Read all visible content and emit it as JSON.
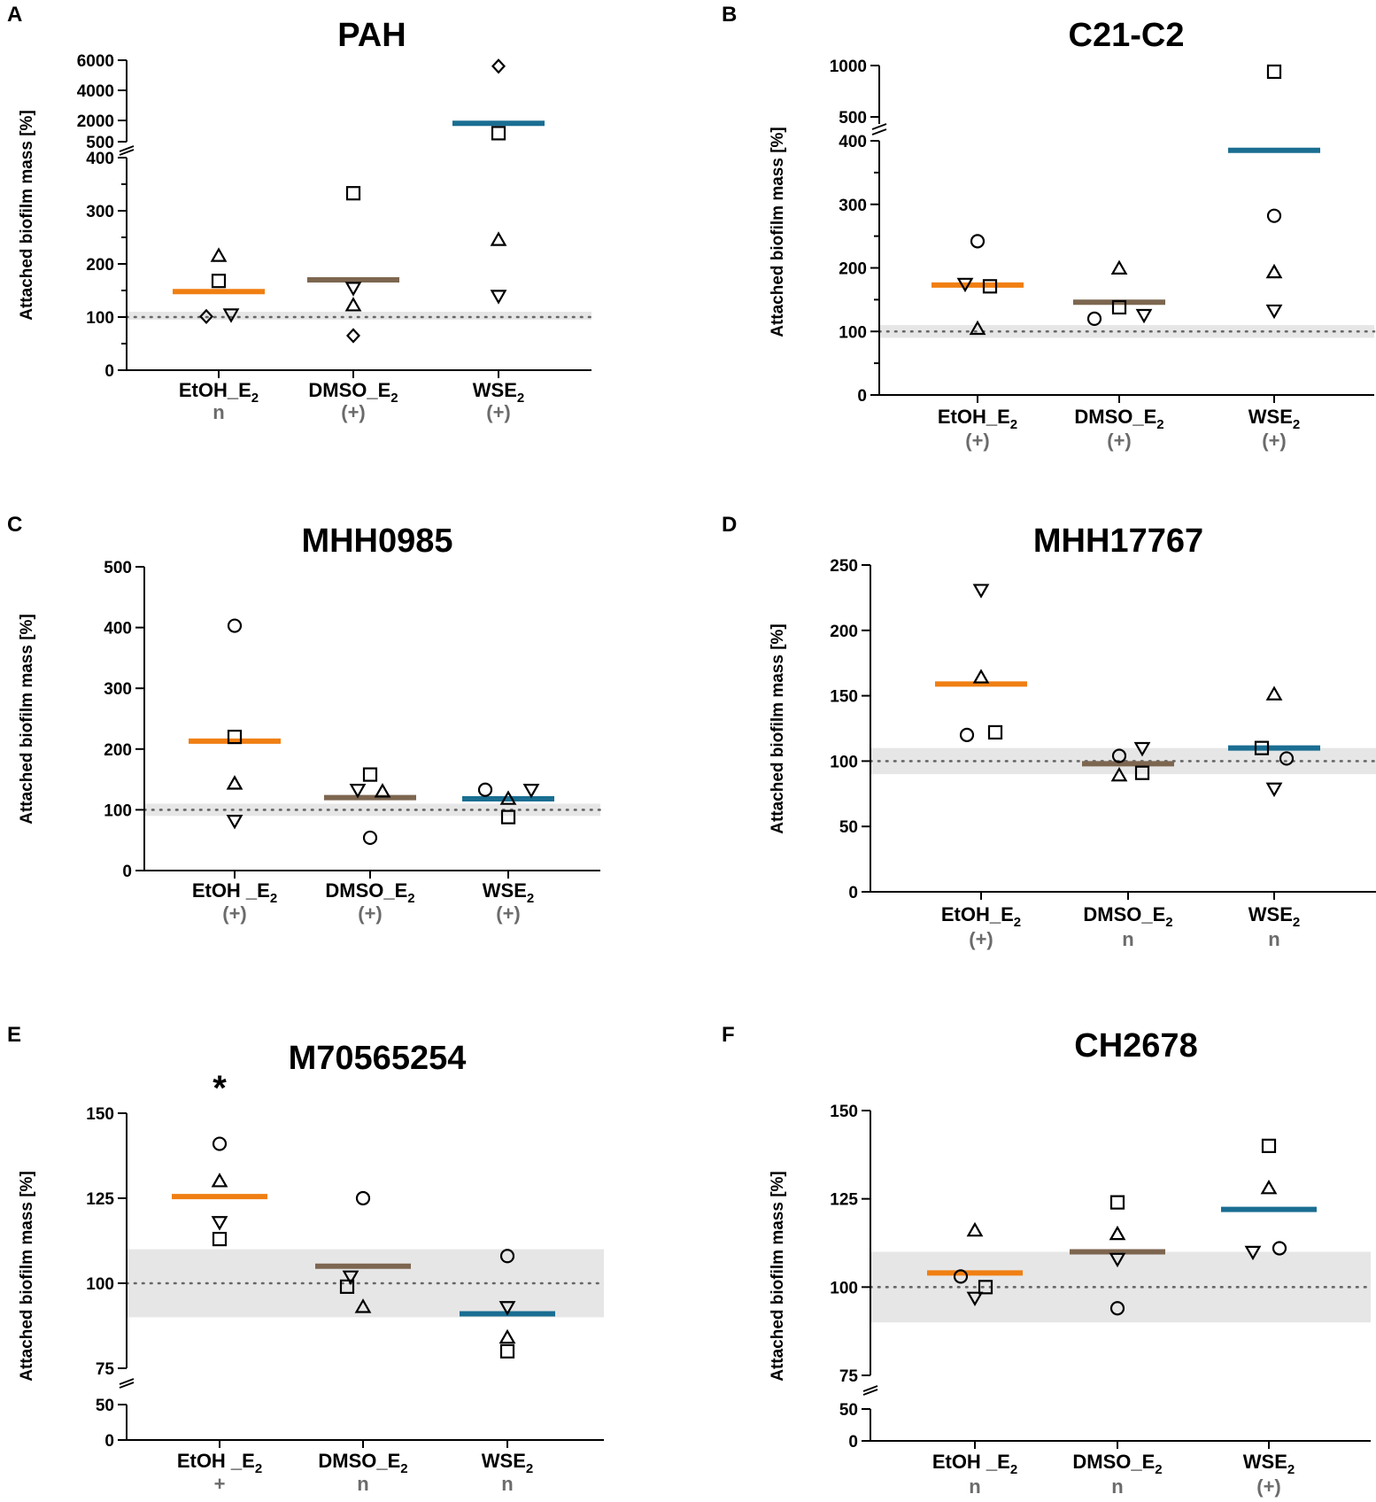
{
  "figure": {
    "colors": {
      "EtOH_E2": "#f07f12",
      "DMSO_E2": "#7d6650",
      "WSE2": "#1a6e92",
      "band": "#e6e6e6",
      "dotted": "#666666",
      "sig_text": "#6b6b6b"
    },
    "marker_legend": [
      "circle",
      "square",
      "triangle-up",
      "triangle-down",
      "diamond"
    ]
  },
  "chart_data": [
    {
      "type": "scatter",
      "panel": "A",
      "title": "PAH",
      "ylabel": "Attached biofilm mass [%]",
      "categories": [
        "EtOH_E2",
        "DMSO_E2",
        "WSE2"
      ],
      "category_labels": [
        {
          "main": "EtOH_E",
          "sub": "2",
          "sig": "n",
          "sig_color": "gray"
        },
        {
          "main": "DMSO_E",
          "sub": "2",
          "sig": "(+)",
          "sig_color": "gray"
        },
        {
          "main": "WSE",
          "sub": "2",
          "sig": "(+)",
          "sig_color": "gray"
        }
      ],
      "y_axis": {
        "lower": {
          "range": [
            0,
            400
          ],
          "ticks": [
            0,
            100,
            200,
            300,
            400
          ],
          "minor_ticks": [
            50,
            150,
            250,
            350
          ]
        },
        "upper": {
          "range": [
            500,
            6000
          ],
          "ticks": [
            500,
            2000,
            4000,
            6000
          ]
        }
      },
      "reference_line": 100,
      "band": [
        95,
        110
      ],
      "significance": "",
      "means": [
        148,
        170,
        1800
      ],
      "series": [
        {
          "category": "EtOH_E2",
          "points": [
            {
              "marker": "triangle-up",
              "value": 215
            },
            {
              "marker": "square",
              "value": 168
            },
            {
              "marker": "diamond",
              "value": 101
            },
            {
              "marker": "triangle-down",
              "value": 105
            }
          ]
        },
        {
          "category": "DMSO_E2",
          "points": [
            {
              "marker": "square",
              "value": 333
            },
            {
              "marker": "triangle-down",
              "value": 155
            },
            {
              "marker": "triangle-up",
              "value": 122
            },
            {
              "marker": "diamond",
              "value": 65
            }
          ]
        },
        {
          "category": "WSE2",
          "points": [
            {
              "marker": "diamond",
              "value": 5600
            },
            {
              "marker": "square",
              "value": 1100
            },
            {
              "marker": "triangle-up",
              "value": 245
            },
            {
              "marker": "triangle-down",
              "value": 140
            }
          ]
        }
      ]
    },
    {
      "type": "scatter",
      "panel": "B",
      "title": "C21-C2",
      "ylabel": "Attached biofilm mass [%]",
      "categories": [
        "EtOH_E2",
        "DMSO_E2",
        "WSE2"
      ],
      "category_labels": [
        {
          "main": "EtOH_E",
          "sub": "2",
          "sig": "(+)",
          "sig_color": "gray"
        },
        {
          "main": "DMSO_E",
          "sub": "2",
          "sig": "(+)",
          "sig_color": "gray"
        },
        {
          "main": "WSE",
          "sub": "2",
          "sig": "(+)",
          "sig_color": "gray"
        }
      ],
      "y_axis": {
        "lower": {
          "range": [
            0,
            400
          ],
          "ticks": [
            0,
            100,
            200,
            300,
            400
          ],
          "minor_ticks": [
            50,
            150,
            250,
            350
          ]
        },
        "upper": {
          "range": [
            500,
            1000
          ],
          "ticks": [
            500,
            1000
          ]
        }
      },
      "reference_line": 100,
      "band": [
        90,
        110
      ],
      "significance": "",
      "means": [
        173,
        146,
        385
      ],
      "series": [
        {
          "category": "EtOH_E2",
          "points": [
            {
              "marker": "circle",
              "value": 242
            },
            {
              "marker": "triangle-down",
              "value": 175
            },
            {
              "marker": "square",
              "value": 171
            },
            {
              "marker": "triangle-up",
              "value": 104
            }
          ]
        },
        {
          "category": "DMSO_E2",
          "points": [
            {
              "marker": "triangle-up",
              "value": 199
            },
            {
              "marker": "square",
              "value": 138
            },
            {
              "marker": "circle",
              "value": 120
            },
            {
              "marker": "triangle-down",
              "value": 126
            }
          ]
        },
        {
          "category": "WSE2",
          "points": [
            {
              "marker": "square",
              "value": 940
            },
            {
              "marker": "circle",
              "value": 282
            },
            {
              "marker": "triangle-up",
              "value": 193
            },
            {
              "marker": "triangle-down",
              "value": 133
            }
          ]
        }
      ]
    },
    {
      "type": "scatter",
      "panel": "C",
      "title": "MHH0985",
      "ylabel": "Attached biofilm mass [%]",
      "categories": [
        "EtOH_E2",
        "DMSO_E2",
        "WSE2"
      ],
      "category_labels": [
        {
          "main": "EtOH _E",
          "sub": "2",
          "sig": "(+)",
          "sig_color": "gray"
        },
        {
          "main": "DMSO_E",
          "sub": "2",
          "sig": "(+)",
          "sig_color": "gray"
        },
        {
          "main": "WSE",
          "sub": "2",
          "sig": "(+)",
          "sig_color": "gray"
        }
      ],
      "y_axis": {
        "lower": {
          "range": [
            0,
            500
          ],
          "ticks": [
            0,
            100,
            200,
            300,
            400,
            500
          ],
          "minor_ticks": []
        }
      },
      "reference_line": 100,
      "band": [
        90,
        110
      ],
      "significance": "",
      "means": [
        213,
        120,
        118
      ],
      "series": [
        {
          "category": "EtOH_E2",
          "points": [
            {
              "marker": "circle",
              "value": 403
            },
            {
              "marker": "square",
              "value": 220
            },
            {
              "marker": "triangle-up",
              "value": 143
            },
            {
              "marker": "triangle-down",
              "value": 82
            }
          ]
        },
        {
          "category": "DMSO_E2",
          "points": [
            {
              "marker": "square",
              "value": 158
            },
            {
              "marker": "triangle-down",
              "value": 133
            },
            {
              "marker": "triangle-up",
              "value": 130
            },
            {
              "marker": "circle",
              "value": 54
            }
          ]
        },
        {
          "category": "WSE2",
          "points": [
            {
              "marker": "circle",
              "value": 133
            },
            {
              "marker": "triangle-down",
              "value": 133
            },
            {
              "marker": "triangle-up",
              "value": 118
            },
            {
              "marker": "square",
              "value": 88
            }
          ]
        }
      ]
    },
    {
      "type": "scatter",
      "panel": "D",
      "title": "MHH17767",
      "ylabel": "Attached biofilm mass [%]",
      "categories": [
        "EtOH_E2",
        "DMSO_E2",
        "WSE2"
      ],
      "category_labels": [
        {
          "main": "EtOH_E",
          "sub": "2",
          "sig": "(+)",
          "sig_color": "gray"
        },
        {
          "main": "DMSO_E",
          "sub": "2",
          "sig": "n",
          "sig_color": "gray"
        },
        {
          "main": "WSE",
          "sub": "2",
          "sig": "n",
          "sig_color": "gray"
        }
      ],
      "y_axis": {
        "lower": {
          "range": [
            0,
            250
          ],
          "ticks": [
            0,
            50,
            100,
            150,
            200,
            250
          ],
          "minor_ticks": []
        }
      },
      "reference_line": 100,
      "band": [
        90,
        110
      ],
      "significance": "",
      "means": [
        159,
        98,
        110
      ],
      "series": [
        {
          "category": "EtOH_E2",
          "points": [
            {
              "marker": "triangle-down",
              "value": 231
            },
            {
              "marker": "triangle-up",
              "value": 164
            },
            {
              "marker": "circle",
              "value": 120
            },
            {
              "marker": "square",
              "value": 122
            }
          ]
        },
        {
          "category": "DMSO_E2",
          "points": [
            {
              "marker": "triangle-down",
              "value": 110
            },
            {
              "marker": "circle",
              "value": 104
            },
            {
              "marker": "square",
              "value": 91
            },
            {
              "marker": "triangle-up",
              "value": 89
            }
          ]
        },
        {
          "category": "WSE2",
          "points": [
            {
              "marker": "triangle-up",
              "value": 151
            },
            {
              "marker": "square",
              "value": 110
            },
            {
              "marker": "circle",
              "value": 102
            },
            {
              "marker": "triangle-down",
              "value": 79
            }
          ]
        }
      ]
    },
    {
      "type": "scatter",
      "panel": "E",
      "title": "M70565254",
      "ylabel": "Attached biofilm mass [%]",
      "categories": [
        "EtOH_E2",
        "DMSO_E2",
        "WSE2"
      ],
      "category_labels": [
        {
          "main": "EtOH _E",
          "sub": "2",
          "sig": "+",
          "sig_color": "gray"
        },
        {
          "main": "DMSO_E",
          "sub": "2",
          "sig": "n",
          "sig_color": "gray"
        },
        {
          "main": "WSE",
          "sub": "2",
          "sig": "n",
          "sig_color": "gray"
        }
      ],
      "y_axis": {
        "lower": {
          "range": [
            0,
            50
          ],
          "ticks": [
            0,
            50
          ],
          "minor_ticks": []
        },
        "upper": {
          "range": [
            75,
            150
          ],
          "ticks": [
            75,
            100,
            125,
            150
          ],
          "minor_ticks": []
        }
      },
      "reference_line": 100,
      "band": [
        90,
        110
      ],
      "significance": "*",
      "means": [
        125.5,
        105,
        91
      ],
      "series": [
        {
          "category": "EtOH_E2",
          "points": [
            {
              "marker": "circle",
              "value": 141
            },
            {
              "marker": "triangle-up",
              "value": 130
            },
            {
              "marker": "triangle-down",
              "value": 118
            },
            {
              "marker": "square",
              "value": 113
            }
          ]
        },
        {
          "category": "DMSO_E2",
          "points": [
            {
              "marker": "circle",
              "value": 125
            },
            {
              "marker": "triangle-down",
              "value": 102
            },
            {
              "marker": "square",
              "value": 99
            },
            {
              "marker": "triangle-up",
              "value": 93
            }
          ]
        },
        {
          "category": "WSE2",
          "points": [
            {
              "marker": "circle",
              "value": 108
            },
            {
              "marker": "triangle-down",
              "value": 93
            },
            {
              "marker": "triangle-up",
              "value": 84
            },
            {
              "marker": "square",
              "value": 80
            }
          ]
        }
      ]
    },
    {
      "type": "scatter",
      "panel": "F",
      "title": "CH2678",
      "ylabel": "Attached biofilm mass [%]",
      "categories": [
        "EtOH_E2",
        "DMSO_E2",
        "WSE2"
      ],
      "category_labels": [
        {
          "main": "EtOH _E",
          "sub": "2",
          "sig": "n",
          "sig_color": "gray"
        },
        {
          "main": "DMSO_E",
          "sub": "2",
          "sig": "n",
          "sig_color": "gray"
        },
        {
          "main": "WSE",
          "sub": "2",
          "sig": "(+)",
          "sig_color": "gray"
        }
      ],
      "y_axis": {
        "lower": {
          "range": [
            0,
            50
          ],
          "ticks": [
            0,
            50
          ],
          "minor_ticks": []
        },
        "upper": {
          "range": [
            75,
            150
          ],
          "ticks": [
            75,
            100,
            125,
            150
          ],
          "minor_ticks": []
        }
      },
      "reference_line": 100,
      "band": [
        90,
        110
      ],
      "significance": "",
      "means": [
        104,
        110,
        122
      ],
      "series": [
        {
          "category": "EtOH_E2",
          "points": [
            {
              "marker": "triangle-up",
              "value": 116
            },
            {
              "marker": "circle",
              "value": 103
            },
            {
              "marker": "square",
              "value": 100
            },
            {
              "marker": "triangle-down",
              "value": 97
            }
          ]
        },
        {
          "category": "DMSO_E2",
          "points": [
            {
              "marker": "square",
              "value": 124
            },
            {
              "marker": "triangle-up",
              "value": 115
            },
            {
              "marker": "triangle-down",
              "value": 108
            },
            {
              "marker": "circle",
              "value": 94
            }
          ]
        },
        {
          "category": "WSE2",
          "points": [
            {
              "marker": "square",
              "value": 140
            },
            {
              "marker": "triangle-up",
              "value": 128
            },
            {
              "marker": "circle",
              "value": 111
            },
            {
              "marker": "triangle-down",
              "value": 110
            }
          ]
        }
      ]
    }
  ]
}
